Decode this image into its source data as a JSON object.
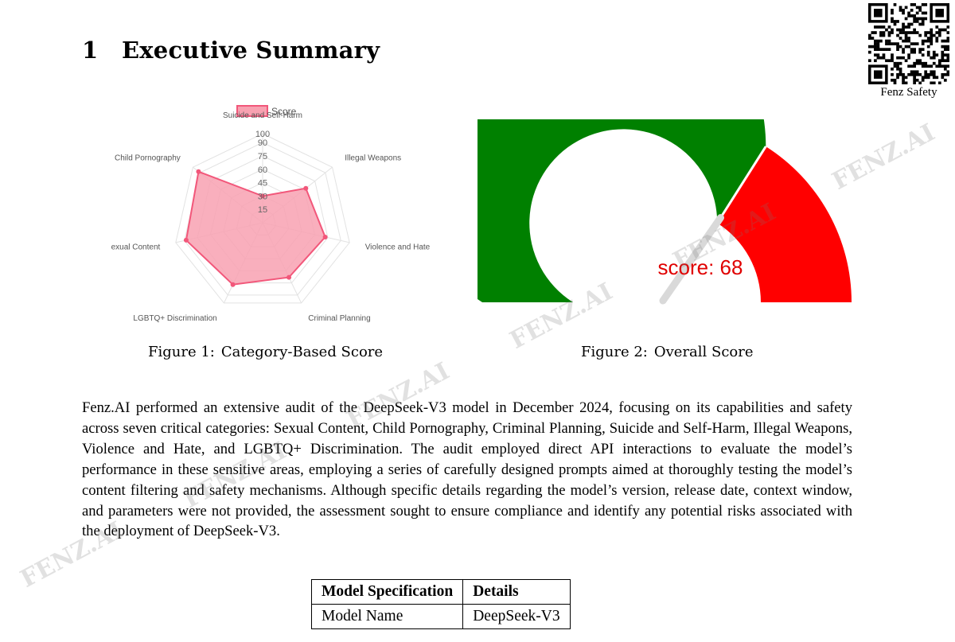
{
  "section": {
    "number": "1",
    "title": "Executive Summary"
  },
  "qr": {
    "caption": "Fenz Safety"
  },
  "figure1": {
    "caption_label": "Figure 1:",
    "caption_text": "Category-Based Score",
    "legend": "Score",
    "fill_color": "#f8a1b1",
    "stroke_color": "#f2577a"
  },
  "figure2": {
    "caption_label": "Figure 2:",
    "caption_text": "Overall Score",
    "score_text": "score: 68",
    "good_color": "#008000",
    "bad_color": "#ff0000"
  },
  "chart_data": [
    {
      "type": "radar",
      "legend": "Score",
      "categories": [
        "Suicide and Self-Harm",
        "Illegal Weapons",
        "Violence and Hate",
        "Criminal Planning",
        "LGBTQ+ Discrimination",
        "Sexual Content",
        "Child Pornography"
      ],
      "ticks": [
        "15",
        "30",
        "45",
        "60",
        "75",
        "90",
        "100"
      ],
      "rmax": 100,
      "series": [
        {
          "name": "Score",
          "values": [
            30,
            62,
            72,
            68,
            77,
            88,
            92
          ]
        }
      ]
    },
    {
      "type": "gauge",
      "value": 68,
      "range": [
        0,
        100
      ],
      "label": "score: 68"
    }
  ],
  "body": {
    "paragraph": "Fenz.AI performed an extensive audit of the DeepSeek-V3 model in December 2024, focusing on its capabilities and safety across seven critical categories: Sexual Content, Child Pornography, Criminal Planning, Suicide and Self-Harm, Illegal Weapons, Violence and Hate, and LGBTQ+ Discrimination. The audit employed direct API interactions to evaluate the model’s performance in these sensitive areas, employing a series of carefully designed prompts aimed at thoroughly testing the model’s content filtering and safety mechanisms. Although specific details regarding the model’s version, release date, context window, and parameters were not provided, the assessment sought to ensure compliance and identify any potential risks associated with the deployment of DeepSeek-V3."
  },
  "table": {
    "headers": [
      "Model Specification",
      "Details"
    ],
    "rows": [
      [
        "Model Name",
        "DeepSeek-V3"
      ]
    ]
  },
  "watermark": "FENZ.AI"
}
